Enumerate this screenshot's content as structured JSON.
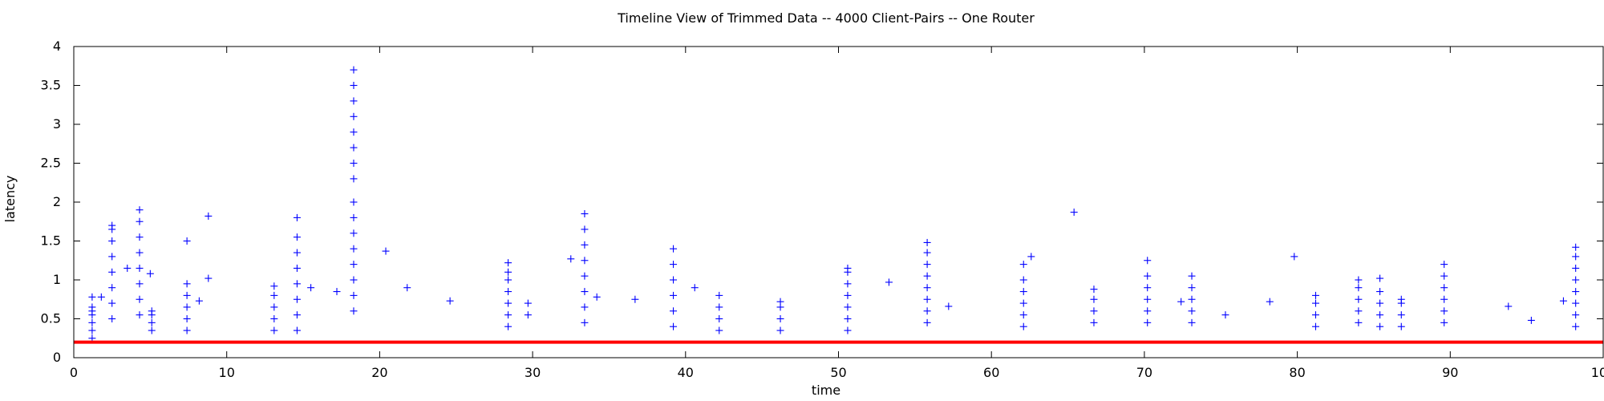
{
  "chart_data": {
    "type": "scatter",
    "title": "Timeline View of Trimmed Data -- 4000 Client-Pairs -- One Router",
    "xlabel": "time",
    "ylabel": "latency",
    "xlim": [
      0,
      100
    ],
    "ylim": [
      0,
      4
    ],
    "xticks": [
      0,
      10,
      20,
      30,
      40,
      50,
      60,
      70,
      80,
      90,
      100
    ],
    "yticks": [
      0,
      0.5,
      1,
      1.5,
      2,
      2.5,
      3,
      3.5,
      4
    ],
    "grid": false,
    "colors": {
      "points": "#0000ff",
      "reference_line": "#ff0000",
      "axis": "#000000"
    },
    "reference_line": {
      "y": 0.2,
      "x_range": [
        0,
        100
      ]
    },
    "clusters": [
      {
        "x": 1.2,
        "y": [
          0.25,
          0.35,
          0.45,
          0.55,
          0.6,
          0.65,
          0.78
        ]
      },
      {
        "x": 2.5,
        "y": [
          0.5,
          0.7,
          0.9,
          1.1,
          1.3,
          1.5,
          1.65,
          1.7
        ]
      },
      {
        "x": 4.3,
        "y": [
          0.55,
          0.75,
          0.95,
          1.15,
          1.35,
          1.55,
          1.75,
          1.9
        ]
      },
      {
        "x": 5.1,
        "y": [
          0.35,
          0.45,
          0.55,
          0.6
        ]
      },
      {
        "x": 7.4,
        "y": [
          0.35,
          0.5,
          0.65,
          0.8,
          0.95,
          1.5
        ]
      },
      {
        "x": 13.1,
        "y": [
          0.35,
          0.5,
          0.65,
          0.8,
          0.92
        ]
      },
      {
        "x": 14.6,
        "y": [
          0.35,
          0.55,
          0.75,
          0.95,
          1.15,
          1.35,
          1.55,
          1.8
        ]
      },
      {
        "x": 18.3,
        "y": [
          0.6,
          0.8,
          1.0,
          1.2,
          1.4,
          1.6,
          1.8,
          2.0,
          2.3,
          2.5,
          2.7,
          2.9,
          3.1,
          3.3,
          3.5,
          3.7
        ]
      },
      {
        "x": 28.4,
        "y": [
          0.4,
          0.55,
          0.7,
          0.85,
          1.0,
          1.1,
          1.22
        ]
      },
      {
        "x": 29.7,
        "y": [
          0.55,
          0.7
        ]
      },
      {
        "x": 33.4,
        "y": [
          0.45,
          0.65,
          0.85,
          1.05,
          1.25,
          1.45,
          1.65,
          1.85
        ]
      },
      {
        "x": 39.2,
        "y": [
          0.4,
          0.6,
          0.8,
          1.0,
          1.2,
          1.4
        ]
      },
      {
        "x": 42.2,
        "y": [
          0.35,
          0.5,
          0.65,
          0.8
        ]
      },
      {
        "x": 46.2,
        "y": [
          0.35,
          0.5,
          0.65,
          0.72
        ]
      },
      {
        "x": 50.6,
        "y": [
          0.35,
          0.5,
          0.65,
          0.8,
          0.95,
          1.1,
          1.15
        ]
      },
      {
        "x": 55.8,
        "y": [
          0.45,
          0.6,
          0.75,
          0.9,
          1.05,
          1.2,
          1.35,
          1.48
        ]
      },
      {
        "x": 62.1,
        "y": [
          0.4,
          0.55,
          0.7,
          0.85,
          1.0,
          1.2
        ]
      },
      {
        "x": 66.7,
        "y": [
          0.45,
          0.6,
          0.75,
          0.88
        ]
      },
      {
        "x": 70.2,
        "y": [
          0.45,
          0.6,
          0.75,
          0.9,
          1.05,
          1.25
        ]
      },
      {
        "x": 73.1,
        "y": [
          0.45,
          0.6,
          0.75,
          0.9,
          1.05
        ]
      },
      {
        "x": 81.2,
        "y": [
          0.4,
          0.55,
          0.7,
          0.8
        ]
      },
      {
        "x": 84.0,
        "y": [
          0.45,
          0.6,
          0.75,
          0.9,
          1.0
        ]
      },
      {
        "x": 85.4,
        "y": [
          0.4,
          0.55,
          0.7,
          0.85,
          1.02
        ]
      },
      {
        "x": 86.8,
        "y": [
          0.4,
          0.55,
          0.7,
          0.75
        ]
      },
      {
        "x": 89.6,
        "y": [
          0.45,
          0.6,
          0.75,
          0.9,
          1.05,
          1.2
        ]
      },
      {
        "x": 98.2,
        "y": [
          0.4,
          0.55,
          0.7,
          0.85,
          1.0,
          1.15,
          1.3,
          1.42
        ]
      }
    ],
    "outliers": [
      {
        "x": 1.8,
        "y": 0.78
      },
      {
        "x": 3.5,
        "y": 1.15
      },
      {
        "x": 5.0,
        "y": 1.08
      },
      {
        "x": 8.2,
        "y": 0.73
      },
      {
        "x": 8.8,
        "y": 1.82
      },
      {
        "x": 8.8,
        "y": 1.02
      },
      {
        "x": 15.5,
        "y": 0.9
      },
      {
        "x": 17.2,
        "y": 0.85
      },
      {
        "x": 20.4,
        "y": 1.37
      },
      {
        "x": 21.8,
        "y": 0.9
      },
      {
        "x": 24.6,
        "y": 0.73
      },
      {
        "x": 32.5,
        "y": 1.27
      },
      {
        "x": 34.2,
        "y": 0.78
      },
      {
        "x": 36.7,
        "y": 0.75
      },
      {
        "x": 40.6,
        "y": 0.9
      },
      {
        "x": 53.3,
        "y": 0.97
      },
      {
        "x": 57.2,
        "y": 0.66
      },
      {
        "x": 62.6,
        "y": 1.3
      },
      {
        "x": 65.4,
        "y": 1.87
      },
      {
        "x": 72.4,
        "y": 0.72
      },
      {
        "x": 75.3,
        "y": 0.55
      },
      {
        "x": 78.2,
        "y": 0.72
      },
      {
        "x": 79.8,
        "y": 1.3
      },
      {
        "x": 93.8,
        "y": 0.66
      },
      {
        "x": 95.3,
        "y": 0.48
      },
      {
        "x": 97.4,
        "y": 0.73
      }
    ]
  }
}
